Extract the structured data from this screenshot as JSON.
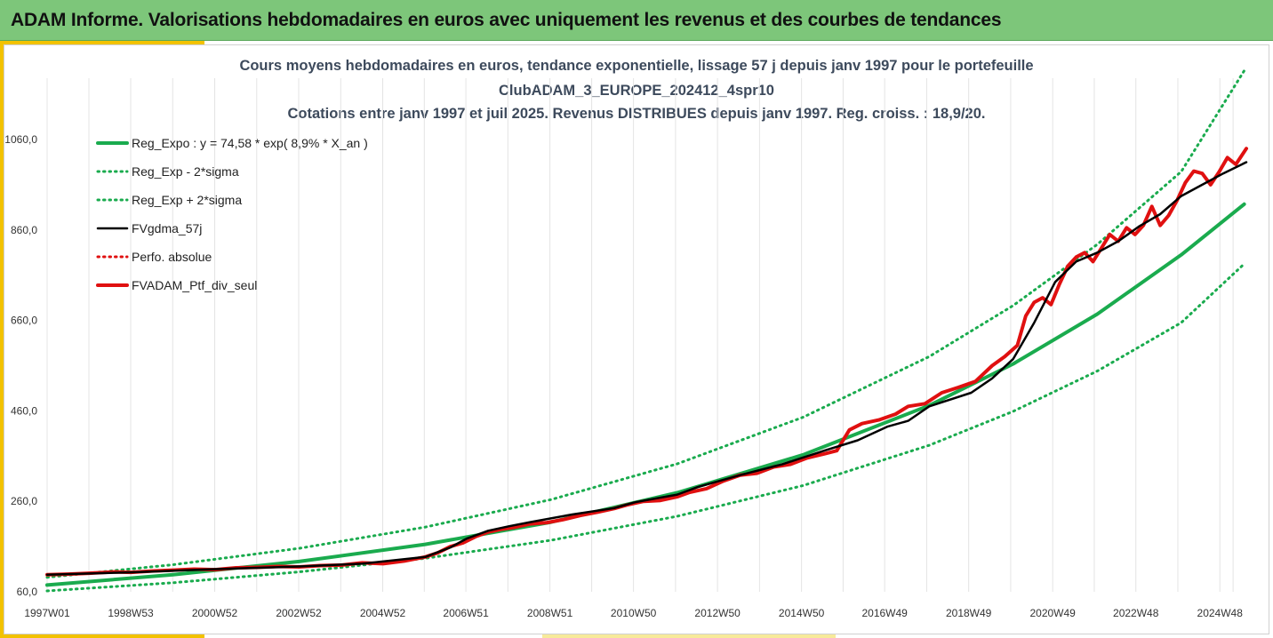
{
  "banner": {
    "title": "ADAM Informe. Valorisations hebdomadaires en euros avec uniquement les revenus et des courbes de tendances"
  },
  "colors": {
    "banner_bg": "#7dc67a",
    "accent": "#f2c200",
    "trend": "#1aab4e",
    "smoothed": "#000000",
    "portfolio": "#e01010"
  },
  "chart_data": {
    "type": "line",
    "title_lines": [
      "Cours moyens hebdomadaires en euros, tendance exponentielle, lissage 57 j depuis janv 1997 pour le portefeuille",
      "ClubADAM_3_EUROPE_202412_4spr10",
      "Cotations entre janv 1997 et juil 2025. Revenus DISTRIBUES depuis janv 1997. Reg. croiss. : 18,9/20."
    ],
    "xlabel": "",
    "ylabel": "",
    "ylim": [
      60,
      1200
    ],
    "y_ticks": [
      "60,0",
      "260,0",
      "460,0",
      "660,0",
      "860,0",
      "1060,0"
    ],
    "y_tick_values": [
      60,
      260,
      460,
      660,
      860,
      1060
    ],
    "x_range": [
      1997.0,
      2025.55
    ],
    "x_ticks": [
      {
        "label": "1997W01",
        "x": 1997.0
      },
      {
        "label": "1998W53",
        "x": 1998.99
      },
      {
        "label": "2000W52",
        "x": 2000.99
      },
      {
        "label": "2002W52",
        "x": 2002.99
      },
      {
        "label": "2004W52",
        "x": 2004.99
      },
      {
        "label": "2006W51",
        "x": 2006.97
      },
      {
        "label": "2008W51",
        "x": 2008.97
      },
      {
        "label": "2010W50",
        "x": 2010.96
      },
      {
        "label": "2012W50",
        "x": 2012.96
      },
      {
        "label": "2014W50",
        "x": 2014.96
      },
      {
        "label": "2016W49",
        "x": 2016.94
      },
      {
        "label": "2018W49",
        "x": 2018.94
      },
      {
        "label": "2020W49",
        "x": 2020.94
      },
      {
        "label": "2022W48",
        "x": 2022.92
      },
      {
        "label": "2024W48",
        "x": 2024.92
      }
    ],
    "grid": "vertical",
    "legend_position": "top-left",
    "series": [
      {
        "name": "Reg_Expo : y = 74,58 * exp( 8,9% *  X_an )",
        "style": "solid-thick",
        "color": "#1aab4e",
        "x": [
          1997.0,
          2000.0,
          2003.0,
          2006.0,
          2009.0,
          2012.0,
          2015.0,
          2018.0,
          2020.0,
          2022.0,
          2024.0,
          2025.5
        ],
        "values": [
          75,
          98,
          127,
          165,
          214,
          279,
          363,
          472,
          564,
          674,
          805,
          917
        ]
      },
      {
        "name": "Reg_Exp - 2*sigma",
        "style": "dotted",
        "color": "#1aab4e",
        "x": [
          1997.0,
          2000.0,
          2003.0,
          2006.0,
          2009.0,
          2012.0,
          2015.0,
          2018.0,
          2020.0,
          2022.0,
          2024.0,
          2025.5
        ],
        "values": [
          62,
          80,
          104,
          134,
          174,
          227,
          295,
          384,
          459,
          548,
          655,
          785
        ]
      },
      {
        "name": "Reg_Exp + 2*sigma",
        "style": "dotted",
        "color": "#1aab4e",
        "x": [
          1997.0,
          2000.0,
          2003.0,
          2006.0,
          2009.0,
          2012.0,
          2015.0,
          2018.0,
          2020.0,
          2022.0,
          2024.0,
          2025.5
        ],
        "values": [
          92,
          120,
          156,
          203,
          264,
          343,
          446,
          580,
          693,
          828,
          989,
          1212
        ]
      },
      {
        "name": "FVgdma_57j",
        "style": "solid",
        "color": "#000000",
        "x": [
          1997.0,
          1999.0,
          2001.0,
          2003.0,
          2004.5,
          2006.0,
          2006.6,
          2007.0,
          2007.5,
          2008.0,
          2008.5,
          2009.5,
          2010.5,
          2011.0,
          2012.0,
          2012.5,
          2013.5,
          2014.5,
          2015.5,
          2016.3,
          2017.0,
          2017.5,
          2018.0,
          2019.0,
          2019.5,
          2020.0,
          2020.5,
          2021.0,
          2021.5,
          2022.0,
          2022.5,
          2023.0,
          2023.5,
          2024.0,
          2024.5,
          2025.0,
          2025.55
        ],
        "values": [
          98,
          103,
          110,
          116,
          122,
          137,
          158,
          178,
          195,
          205,
          214,
          231,
          245,
          258,
          275,
          292,
          318,
          342,
          372,
          395,
          425,
          438,
          470,
          500,
          532,
          575,
          655,
          745,
          790,
          810,
          835,
          868,
          895,
          935,
          960,
          985,
          1010
        ]
      },
      {
        "name": "Perfo. absolue",
        "style": "dotted",
        "color": "#e01010",
        "x": [],
        "values": []
      },
      {
        "name": "FVADAM_Ptf_div_seul",
        "style": "solid-thick",
        "color": "#e01010",
        "x": [
          1997.0,
          1997.5,
          1998.0,
          1998.6,
          1999.0,
          1999.5,
          2000.0,
          2000.5,
          2001.0,
          2001.5,
          2002.0,
          2002.5,
          2003.0,
          2003.5,
          2004.0,
          2004.5,
          2005.0,
          2005.5,
          2006.0,
          2006.3,
          2006.6,
          2006.9,
          2007.2,
          2007.5,
          2007.8,
          2008.1,
          2008.5,
          2008.9,
          2009.3,
          2009.7,
          2010.1,
          2010.5,
          2010.8,
          2011.2,
          2011.6,
          2012.0,
          2012.3,
          2012.7,
          2013.1,
          2013.5,
          2013.9,
          2014.3,
          2014.7,
          2015.1,
          2015.5,
          2015.8,
          2016.1,
          2016.4,
          2016.8,
          2017.2,
          2017.5,
          2017.9,
          2018.3,
          2018.7,
          2019.1,
          2019.5,
          2019.8,
          2020.1,
          2020.3,
          2020.5,
          2020.7,
          2020.9,
          2021.1,
          2021.3,
          2021.5,
          2021.7,
          2021.9,
          2022.1,
          2022.3,
          2022.5,
          2022.7,
          2022.9,
          2023.1,
          2023.3,
          2023.5,
          2023.7,
          2023.9,
          2024.1,
          2024.3,
          2024.5,
          2024.7,
          2024.9,
          2025.1,
          2025.3,
          2025.55
        ],
        "values": [
          98,
          99,
          101,
          104,
          103,
          106,
          108,
          110,
          109,
          113,
          114,
          116,
          115,
          118,
          119,
          124,
          122,
          128,
          137,
          146,
          160,
          168,
          182,
          192,
          198,
          202,
          210,
          213,
          220,
          229,
          236,
          244,
          252,
          260,
          262,
          270,
          280,
          288,
          305,
          318,
          322,
          336,
          342,
          356,
          365,
          372,
          418,
          432,
          440,
          453,
          470,
          476,
          500,
          512,
          525,
          560,
          580,
          605,
          670,
          700,
          710,
          695,
          740,
          780,
          800,
          810,
          790,
          820,
          850,
          835,
          865,
          850,
          870,
          912,
          870,
          892,
          925,
          965,
          990,
          985,
          960,
          988,
          1020,
          1005,
          1040
        ]
      }
    ]
  }
}
